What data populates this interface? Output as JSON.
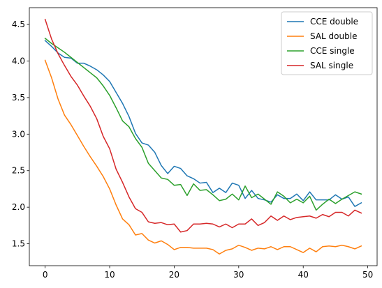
{
  "chart_data": {
    "type": "line",
    "title": "",
    "xlabel": "",
    "ylabel": "",
    "xlim": [
      -2.45,
      51.45
    ],
    "ylim": [
      1.2,
      4.73
    ],
    "grid": false,
    "legend_position": "top-right",
    "x_ticks": [
      0,
      10,
      20,
      30,
      40,
      50
    ],
    "x_tick_labels": [
      "0",
      "10",
      "20",
      "30",
      "40",
      "50"
    ],
    "y_ticks": [
      1.5,
      2.0,
      2.5,
      3.0,
      3.5,
      4.0,
      4.5
    ],
    "y_tick_labels": [
      "1.5",
      "2.0",
      "2.5",
      "3.0",
      "3.5",
      "4.0",
      "4.5"
    ],
    "x": [
      0,
      1,
      2,
      3,
      4,
      5,
      6,
      7,
      8,
      9,
      10,
      11,
      12,
      13,
      14,
      15,
      16,
      17,
      18,
      19,
      20,
      21,
      22,
      23,
      24,
      25,
      26,
      27,
      28,
      29,
      30,
      31,
      32,
      33,
      34,
      35,
      36,
      37,
      38,
      39,
      40,
      41,
      42,
      43,
      44,
      45,
      46,
      47,
      48,
      49
    ],
    "series": [
      {
        "name": "CCE double",
        "color": "#1f77b4",
        "values": [
          4.28,
          4.2,
          4.11,
          4.05,
          4.04,
          3.97,
          3.97,
          3.93,
          3.88,
          3.81,
          3.72,
          3.57,
          3.42,
          3.24,
          3.01,
          2.88,
          2.85,
          2.75,
          2.57,
          2.46,
          2.56,
          2.53,
          2.43,
          2.39,
          2.33,
          2.34,
          2.2,
          2.26,
          2.2,
          2.33,
          2.3,
          2.12,
          2.23,
          2.12,
          2.1,
          2.07,
          2.17,
          2.12,
          2.12,
          2.18,
          2.09,
          2.21,
          2.1,
          2.1,
          2.1,
          2.17,
          2.11,
          2.14,
          2.01,
          2.06
        ]
      },
      {
        "name": "SAL double",
        "color": "#ff7f0e",
        "values": [
          4.01,
          3.77,
          3.48,
          3.26,
          3.13,
          2.98,
          2.83,
          2.69,
          2.56,
          2.42,
          2.25,
          2.03,
          1.84,
          1.76,
          1.62,
          1.64,
          1.55,
          1.51,
          1.54,
          1.49,
          1.42,
          1.45,
          1.45,
          1.44,
          1.44,
          1.44,
          1.42,
          1.36,
          1.41,
          1.43,
          1.48,
          1.45,
          1.41,
          1.44,
          1.43,
          1.46,
          1.42,
          1.46,
          1.46,
          1.42,
          1.38,
          1.44,
          1.39,
          1.46,
          1.47,
          1.46,
          1.48,
          1.46,
          1.43,
          1.47
        ]
      },
      {
        "name": "CCE single",
        "color": "#2ca02c",
        "values": [
          4.31,
          4.24,
          4.18,
          4.12,
          4.05,
          3.98,
          3.91,
          3.84,
          3.77,
          3.66,
          3.53,
          3.36,
          3.18,
          3.1,
          2.94,
          2.82,
          2.6,
          2.5,
          2.4,
          2.38,
          2.3,
          2.31,
          2.16,
          2.32,
          2.23,
          2.24,
          2.17,
          2.09,
          2.11,
          2.18,
          2.1,
          2.29,
          2.13,
          2.18,
          2.11,
          2.04,
          2.21,
          2.15,
          2.06,
          2.11,
          2.06,
          2.15,
          1.96,
          2.04,
          2.11,
          2.05,
          2.11,
          2.16,
          2.21,
          2.18
        ]
      },
      {
        "name": "SAL single",
        "color": "#d62728",
        "values": [
          4.57,
          4.3,
          4.1,
          3.94,
          3.79,
          3.67,
          3.52,
          3.38,
          3.21,
          2.97,
          2.8,
          2.52,
          2.34,
          2.14,
          1.98,
          1.93,
          1.8,
          1.78,
          1.79,
          1.76,
          1.77,
          1.66,
          1.68,
          1.77,
          1.77,
          1.78,
          1.77,
          1.73,
          1.77,
          1.72,
          1.77,
          1.77,
          1.84,
          1.75,
          1.79,
          1.88,
          1.82,
          1.88,
          1.83,
          1.86,
          1.87,
          1.88,
          1.85,
          1.9,
          1.87,
          1.93,
          1.93,
          1.88,
          1.96,
          1.92
        ]
      }
    ]
  }
}
